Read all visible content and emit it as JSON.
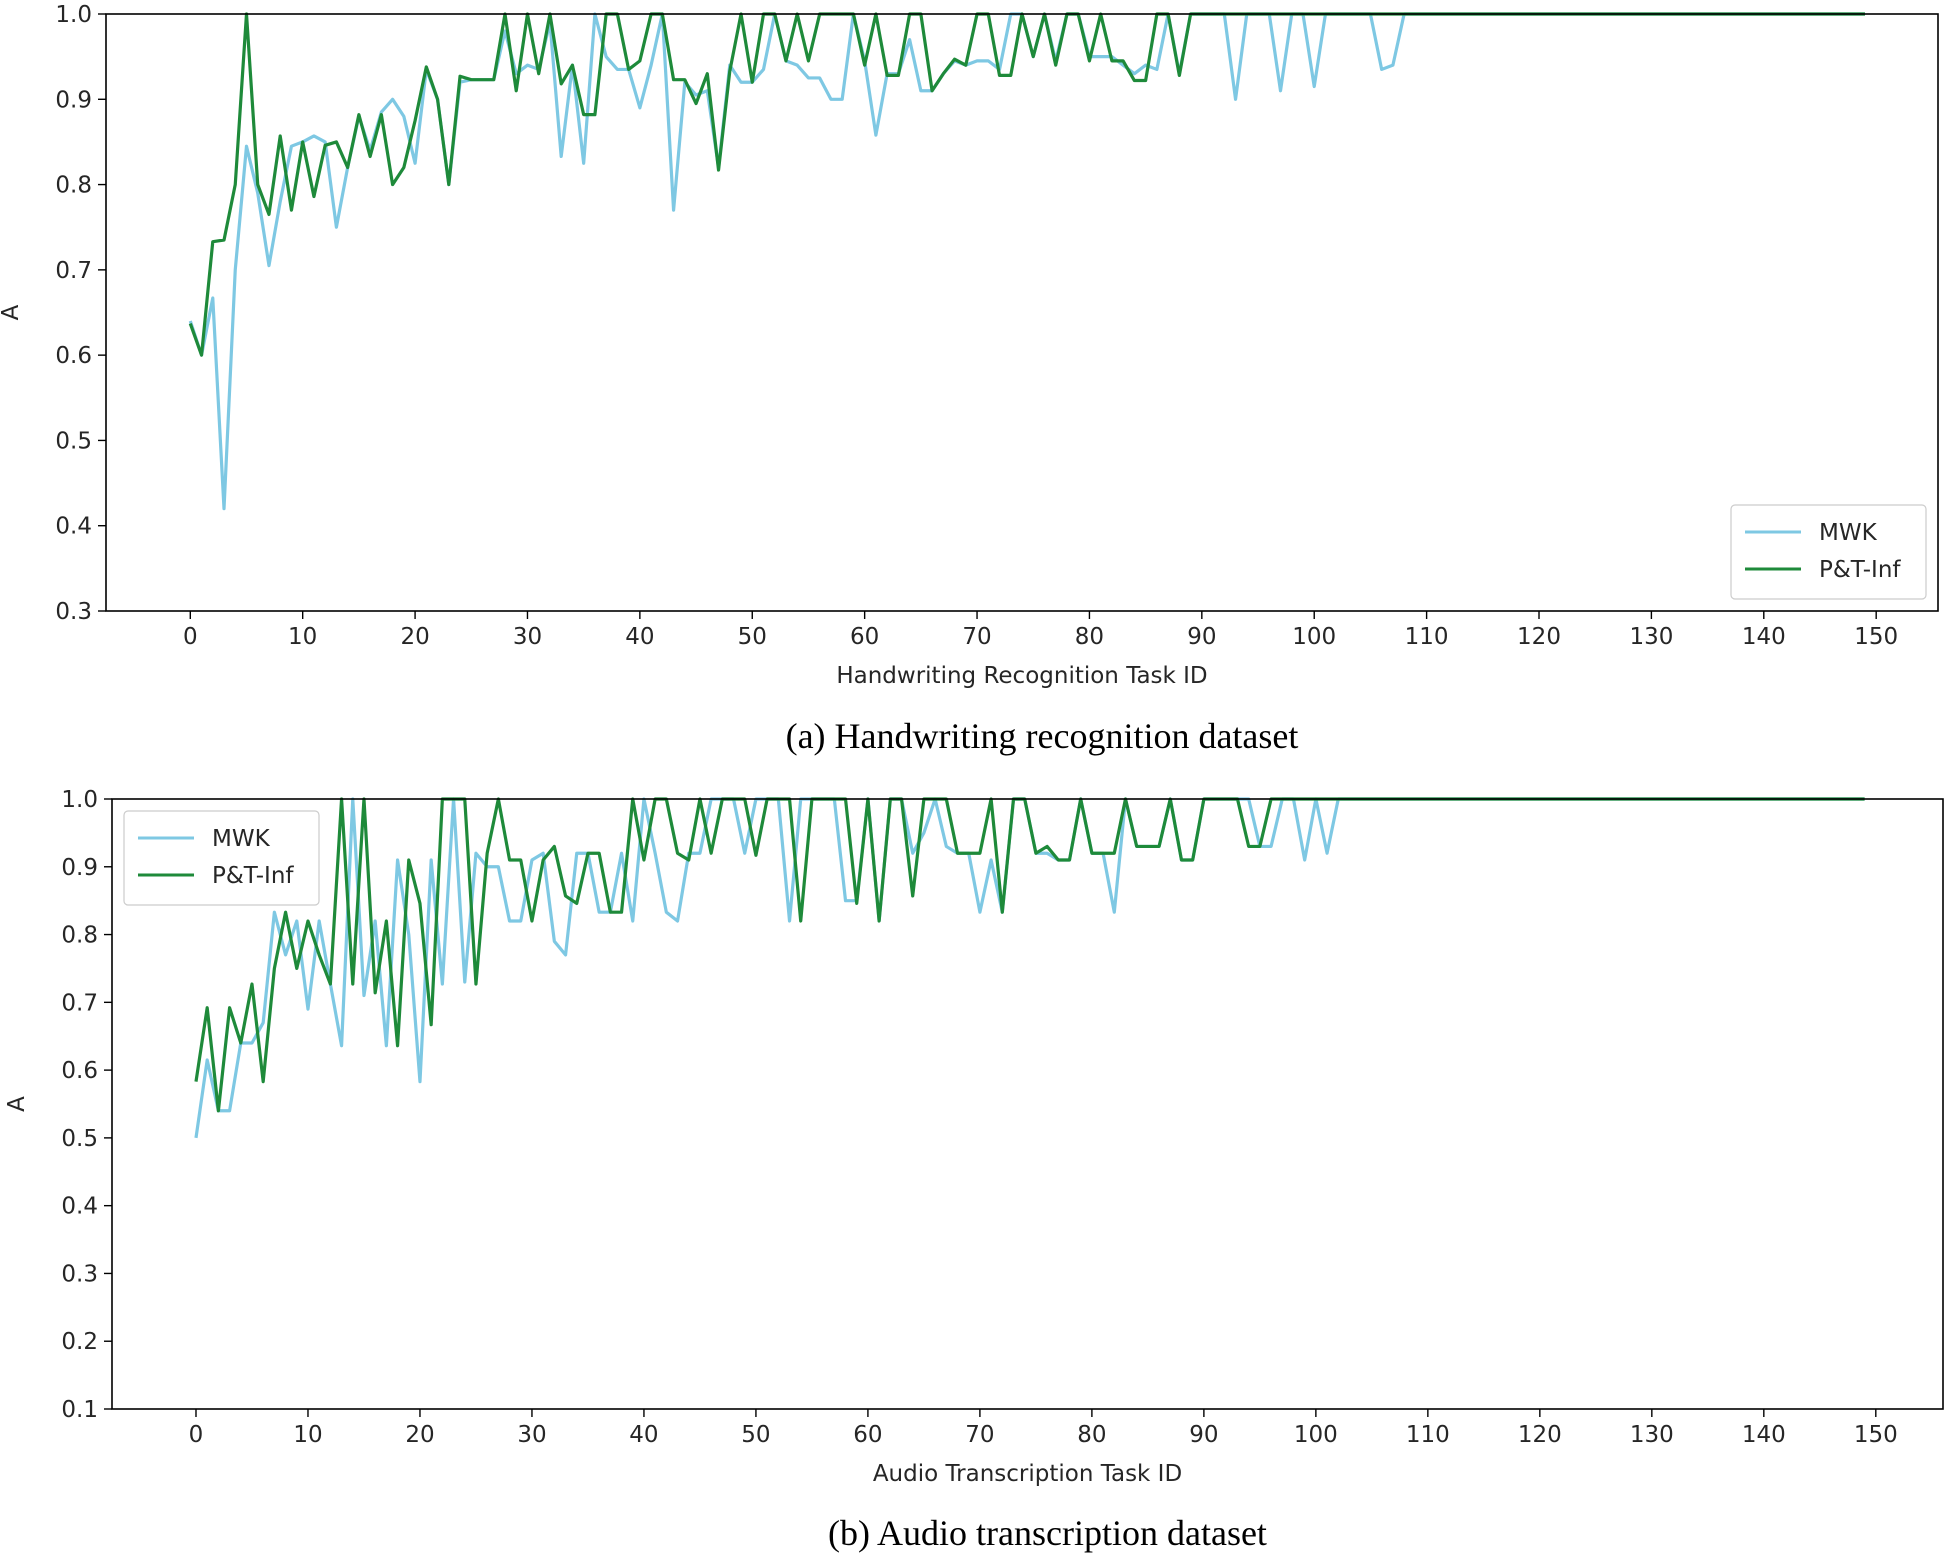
{
  "colors": {
    "mwk": "#7ec8e3",
    "pt_inf": "#1e8a3a",
    "axis": "#000000",
    "text": "#262626"
  },
  "chart_data": [
    {
      "type": "line",
      "id": "a",
      "caption": "(a) Handwriting recognition dataset",
      "xlabel": "Handwriting Recognition Task ID",
      "ylabel": "A",
      "xlim": [
        -7.5,
        155.5
      ],
      "ylim": [
        0.3,
        1.0
      ],
      "xticks": [
        0,
        10,
        20,
        30,
        40,
        50,
        60,
        70,
        80,
        90,
        100,
        110,
        120,
        130,
        140,
        150
      ],
      "xtick_labels": [
        "0",
        "10",
        "20",
        "30",
        "40",
        "50",
        "60",
        "70",
        "80",
        "90",
        "100",
        "110",
        "120",
        "130",
        "140",
        "150"
      ],
      "yticks": [
        0.3,
        0.4,
        0.5,
        0.6,
        0.7,
        0.8,
        0.9,
        1.0
      ],
      "ytick_labels": [
        "0.3",
        "0.4",
        "0.5",
        "0.6",
        "0.7",
        "0.8",
        "0.9",
        "1.0"
      ],
      "legend_position": "lower-right",
      "series": [
        {
          "name": "MWK",
          "color_key": "mwk",
          "values": [
            0.64,
            0.6,
            0.667,
            0.42,
            0.7,
            0.845,
            0.79,
            0.705,
            0.78,
            0.845,
            0.85,
            0.857,
            0.85,
            0.75,
            0.82,
            0.88,
            0.84,
            0.885,
            0.9,
            0.88,
            0.825,
            0.935,
            0.9,
            0.8,
            0.92,
            0.923,
            0.923,
            0.923,
            0.98,
            0.93,
            0.94,
            0.935,
            0.99,
            0.833,
            0.94,
            0.825,
            1.0,
            0.95,
            0.935,
            0.935,
            0.89,
            0.94,
            1.0,
            0.77,
            0.92,
            0.905,
            0.91,
            0.82,
            0.94,
            0.92,
            0.92,
            0.935,
            1.0,
            0.945,
            0.94,
            0.925,
            0.925,
            0.9,
            0.9,
            1.0,
            0.945,
            0.858,
            0.93,
            0.93,
            0.97,
            0.91,
            0.91,
            0.93,
            0.945,
            0.94,
            0.945,
            0.945,
            0.935,
            1.0,
            1.0,
            0.95,
            1.0,
            0.945,
            1.0,
            1.0,
            0.95,
            0.95,
            0.95,
            0.94,
            0.93,
            0.94,
            0.935,
            1.0,
            0.93,
            1.0,
            1.0,
            1.0,
            1.0,
            0.9,
            1.0,
            1.0,
            1.0,
            0.91,
            1.0,
            1.0,
            0.915,
            1.0,
            1.0,
            1.0,
            1.0,
            1.0,
            0.935,
            0.94,
            1.0,
            1.0,
            1.0,
            1.0,
            1.0,
            1.0,
            1.0,
            1.0,
            1.0,
            1.0,
            1.0,
            1.0,
            1.0,
            1.0,
            1.0,
            1.0,
            1.0,
            1.0,
            1.0,
            1.0,
            1.0,
            1.0,
            1.0,
            1.0,
            1.0,
            1.0,
            1.0,
            1.0,
            1.0,
            1.0,
            1.0,
            1.0,
            1.0,
            1.0,
            1.0,
            1.0,
            1.0,
            1.0,
            1.0,
            1.0,
            1.0,
            1.0
          ]
        },
        {
          "name": "P&T-Inf",
          "color_key": "pt_inf",
          "values": [
            0.637,
            0.6,
            0.733,
            0.735,
            0.8,
            1.0,
            0.8,
            0.765,
            0.857,
            0.77,
            0.85,
            0.786,
            0.846,
            0.85,
            0.82,
            0.882,
            0.833,
            0.882,
            0.8,
            0.82,
            0.875,
            0.938,
            0.9,
            0.8,
            0.927,
            0.923,
            0.923,
            0.923,
            1.0,
            0.91,
            1.0,
            0.93,
            1.0,
            0.918,
            0.94,
            0.882,
            0.882,
            1.0,
            1.0,
            0.935,
            0.945,
            1.0,
            1.0,
            0.923,
            0.923,
            0.895,
            0.93,
            0.817,
            0.933,
            1.0,
            0.92,
            1.0,
            1.0,
            0.945,
            1.0,
            0.945,
            1.0,
            1.0,
            1.0,
            1.0,
            0.94,
            1.0,
            0.928,
            0.928,
            1.0,
            1.0,
            0.91,
            0.93,
            0.947,
            0.94,
            1.0,
            1.0,
            0.928,
            0.928,
            1.0,
            0.95,
            1.0,
            0.94,
            1.0,
            1.0,
            0.945,
            1.0,
            0.945,
            0.945,
            0.922,
            0.922,
            1.0,
            1.0,
            0.928,
            1.0,
            1.0,
            1.0,
            1.0,
            1.0,
            1.0,
            1.0,
            1.0,
            1.0,
            1.0,
            1.0,
            1.0,
            1.0,
            1.0,
            1.0,
            1.0,
            1.0,
            1.0,
            1.0,
            1.0,
            1.0,
            1.0,
            1.0,
            1.0,
            1.0,
            1.0,
            1.0,
            1.0,
            1.0,
            1.0,
            1.0,
            1.0,
            1.0,
            1.0,
            1.0,
            1.0,
            1.0,
            1.0,
            1.0,
            1.0,
            1.0,
            1.0,
            1.0,
            1.0,
            1.0,
            1.0,
            1.0,
            1.0,
            1.0,
            1.0,
            1.0,
            1.0,
            1.0,
            1.0,
            1.0,
            1.0,
            1.0,
            1.0,
            1.0,
            1.0,
            1.0
          ]
        }
      ]
    },
    {
      "type": "line",
      "id": "b",
      "caption": "(b) Audio transcription dataset",
      "xlabel": "Audio Transcription Task ID",
      "ylabel": "A",
      "xlim": [
        -7.5,
        156.0
      ],
      "ylim": [
        0.1,
        1.0
      ],
      "xticks": [
        0,
        10,
        20,
        30,
        40,
        50,
        60,
        70,
        80,
        90,
        100,
        110,
        120,
        130,
        140,
        150
      ],
      "xtick_labels": [
        "0",
        "10",
        "20",
        "30",
        "40",
        "50",
        "60",
        "70",
        "80",
        "90",
        "100",
        "110",
        "120",
        "130",
        "140",
        "150"
      ],
      "yticks": [
        0.1,
        0.2,
        0.3,
        0.4,
        0.5,
        0.6,
        0.7,
        0.8,
        0.9,
        1.0
      ],
      "ytick_labels": [
        "0.1",
        "0.2",
        "0.3",
        "0.4",
        "0.5",
        "0.6",
        "0.7",
        "0.8",
        "0.9",
        "1.0"
      ],
      "legend_position": "upper-left",
      "series": [
        {
          "name": "MWK",
          "color_key": "mwk",
          "values": [
            0.5,
            0.615,
            0.54,
            0.54,
            0.64,
            0.64,
            0.67,
            0.833,
            0.77,
            0.82,
            0.69,
            0.82,
            0.727,
            0.636,
            1.0,
            0.71,
            0.82,
            0.636,
            0.91,
            0.8,
            0.583,
            0.91,
            0.727,
            1.0,
            0.73,
            0.92,
            0.9,
            0.9,
            0.82,
            0.82,
            0.91,
            0.92,
            0.79,
            0.77,
            0.92,
            0.92,
            0.833,
            0.833,
            0.92,
            0.82,
            1.0,
            0.92,
            0.833,
            0.82,
            0.92,
            0.92,
            1.0,
            1.0,
            1.0,
            0.92,
            1.0,
            1.0,
            1.0,
            0.82,
            1.0,
            1.0,
            1.0,
            1.0,
            0.85,
            0.85,
            1.0,
            0.82,
            1.0,
            1.0,
            0.92,
            0.95,
            1.0,
            0.93,
            0.92,
            0.92,
            0.833,
            0.91,
            0.833,
            1.0,
            1.0,
            0.92,
            0.92,
            0.91,
            0.91,
            1.0,
            0.92,
            0.92,
            0.833,
            1.0,
            0.93,
            0.93,
            0.93,
            1.0,
            0.91,
            0.91,
            1.0,
            1.0,
            1.0,
            1.0,
            1.0,
            0.93,
            0.93,
            1.0,
            1.0,
            0.91,
            1.0,
            0.92,
            1.0,
            1.0,
            1.0,
            1.0,
            1.0,
            1.0,
            1.0,
            1.0,
            1.0,
            1.0,
            1.0,
            1.0,
            1.0,
            1.0,
            1.0,
            1.0,
            1.0,
            1.0,
            1.0,
            1.0,
            1.0,
            1.0,
            1.0,
            1.0,
            1.0,
            1.0,
            1.0,
            1.0,
            1.0,
            1.0,
            1.0,
            1.0,
            1.0,
            1.0,
            1.0,
            1.0,
            1.0,
            1.0,
            1.0,
            1.0,
            1.0,
            1.0,
            1.0,
            1.0,
            1.0,
            1.0,
            1.0,
            1.0
          ]
        },
        {
          "name": "P&T-Inf",
          "color_key": "pt_inf",
          "values": [
            0.583,
            0.692,
            0.54,
            0.692,
            0.64,
            0.727,
            0.583,
            0.75,
            0.833,
            0.75,
            0.82,
            0.77,
            0.727,
            1.0,
            0.727,
            1.0,
            0.714,
            0.82,
            0.636,
            0.91,
            0.846,
            0.667,
            1.0,
            1.0,
            1.0,
            0.727,
            0.92,
            1.0,
            0.91,
            0.91,
            0.82,
            0.91,
            0.93,
            0.857,
            0.846,
            0.92,
            0.92,
            0.833,
            0.833,
            1.0,
            0.91,
            1.0,
            1.0,
            0.92,
            0.91,
            1.0,
            0.92,
            1.0,
            1.0,
            1.0,
            0.917,
            1.0,
            1.0,
            1.0,
            0.82,
            1.0,
            1.0,
            1.0,
            1.0,
            0.846,
            1.0,
            0.82,
            1.0,
            1.0,
            0.857,
            1.0,
            1.0,
            1.0,
            0.92,
            0.92,
            0.92,
            1.0,
            0.833,
            1.0,
            1.0,
            0.92,
            0.93,
            0.91,
            0.91,
            1.0,
            0.92,
            0.92,
            0.92,
            1.0,
            0.93,
            0.93,
            0.93,
            1.0,
            0.91,
            0.91,
            1.0,
            1.0,
            1.0,
            1.0,
            0.93,
            0.93,
            1.0,
            1.0,
            1.0,
            1.0,
            1.0,
            1.0,
            1.0,
            1.0,
            1.0,
            1.0,
            1.0,
            1.0,
            1.0,
            1.0,
            1.0,
            1.0,
            1.0,
            1.0,
            1.0,
            1.0,
            1.0,
            1.0,
            1.0,
            1.0,
            1.0,
            1.0,
            1.0,
            1.0,
            1.0,
            1.0,
            1.0,
            1.0,
            1.0,
            1.0,
            1.0,
            1.0,
            1.0,
            1.0,
            1.0,
            1.0,
            1.0,
            1.0,
            1.0,
            1.0,
            1.0,
            1.0,
            1.0,
            1.0,
            1.0,
            1.0,
            1.0,
            1.0,
            1.0,
            1.0
          ]
        }
      ]
    }
  ]
}
